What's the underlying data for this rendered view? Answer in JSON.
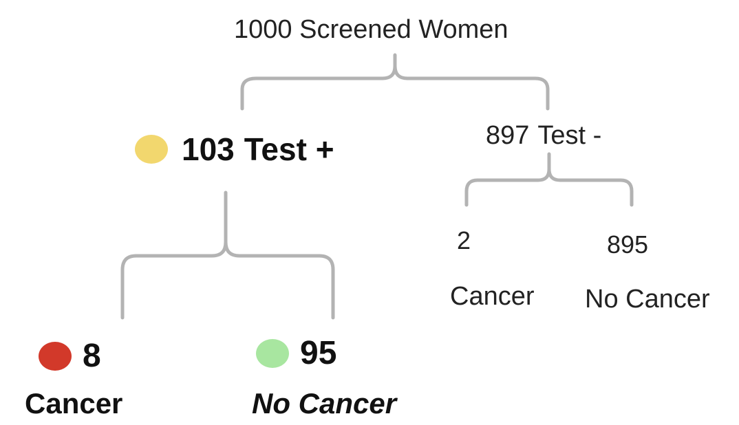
{
  "root": {
    "label": "1000 Screened Women"
  },
  "test_positive": {
    "count": "103",
    "label": "Test +",
    "dot_color": "#f2d76e",
    "children": [
      {
        "count": "8",
        "label": "Cancer",
        "dot_color": "#d2392a",
        "italic": false
      },
      {
        "count": "95",
        "label": "No Cancer",
        "dot_color": "#a8e6a0",
        "italic": true
      }
    ]
  },
  "test_negative": {
    "count": "897",
    "label": "Test -",
    "children": [
      {
        "count": "2",
        "label": "Cancer"
      },
      {
        "count": "895",
        "label": "No Cancer"
      }
    ]
  },
  "colors": {
    "bracket": "#b3b3b3"
  }
}
